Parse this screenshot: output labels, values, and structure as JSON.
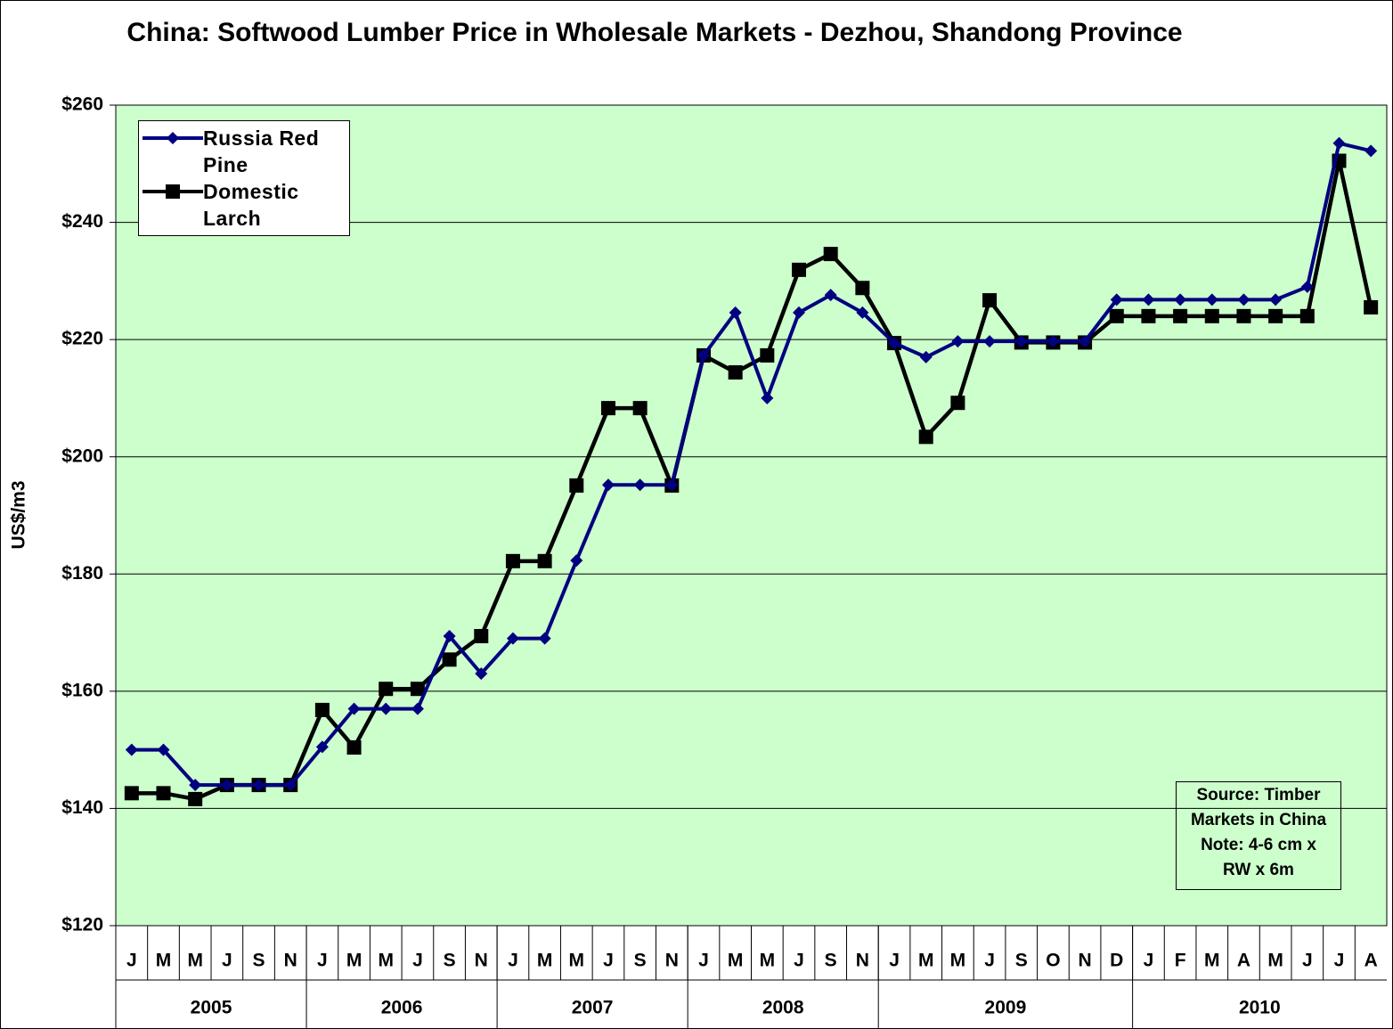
{
  "chart_data": {
    "type": "line",
    "title": "China: Softwood Lumber Price in Wholesale Markets - Dezhou, Shandong Province",
    "y_label": "US$/m3",
    "categories": [
      "J",
      "M",
      "M",
      "J",
      "S",
      "N",
      "J",
      "M",
      "M",
      "J",
      "S",
      "N",
      "J",
      "M",
      "M",
      "J",
      "S",
      "N",
      "J",
      "M",
      "M",
      "J",
      "S",
      "N",
      "J",
      "M",
      "M",
      "J",
      "S",
      "O",
      "N",
      "D",
      "J",
      "F",
      "M",
      "A",
      "M",
      "J",
      "J",
      "A"
    ],
    "year_groups": [
      {
        "label": "2005",
        "count": 6
      },
      {
        "label": "2006",
        "count": 6
      },
      {
        "label": "2007",
        "count": 6
      },
      {
        "label": "2008",
        "count": 6
      },
      {
        "label": "2009",
        "count": 8
      },
      {
        "label": "2010",
        "count": 8
      }
    ],
    "series": [
      {
        "name": "Russia Red Pine",
        "color": "#000080",
        "marker": "diamond",
        "values": [
          150,
          150,
          144,
          144,
          144,
          144,
          150.5,
          157,
          157,
          157,
          169.4,
          163,
          169,
          169,
          182.3,
          195.2,
          195.2,
          195.2,
          217.3,
          224.6,
          210,
          224.6,
          227.6,
          224.6,
          219.4,
          217,
          219.7,
          219.7,
          219.7,
          219.7,
          219.7,
          226.8,
          226.8,
          226.8,
          226.8,
          226.8,
          226.8,
          229,
          253.5,
          252.2
        ]
      },
      {
        "name": "Domestic Larch",
        "color": "#000000",
        "marker": "square",
        "values": [
          142.6,
          142.6,
          141.6,
          144,
          144,
          144,
          156.8,
          150.4,
          160.4,
          160.4,
          165.4,
          169.4,
          182.2,
          182.2,
          195.1,
          208.3,
          208.3,
          195.1,
          217.3,
          214.4,
          217.3,
          231.9,
          234.6,
          228.8,
          219.4,
          203.4,
          209.2,
          226.7,
          219.5,
          219.5,
          219.5,
          224,
          224,
          224,
          224,
          224,
          224,
          224,
          250.5,
          225.5
        ]
      }
    ],
    "ylim": [
      120,
      260
    ],
    "yticks": [
      {
        "value": 120,
        "label": "$120"
      },
      {
        "value": 140,
        "label": "$140"
      },
      {
        "value": 160,
        "label": "$160"
      },
      {
        "value": 180,
        "label": "$180"
      },
      {
        "value": 200,
        "label": "$200"
      },
      {
        "value": 220,
        "label": "$220"
      },
      {
        "value": 240,
        "label": "$240"
      },
      {
        "value": 260,
        "label": "$260"
      }
    ],
    "grid": true,
    "plot_color": "#ccffcc",
    "legend": "upper-left",
    "annotation": [
      "Source: Timber",
      "Markets in China",
      "Note: 4-6 cm x",
      "RW x 6m"
    ]
  }
}
